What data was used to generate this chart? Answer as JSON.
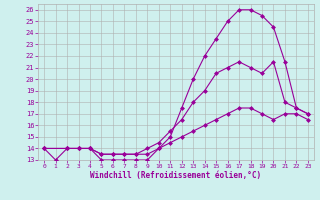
{
  "xlabel": "Windchill (Refroidissement éolien,°C)",
  "bg_color": "#cff0ee",
  "grid_color": "#b0b0b0",
  "line_color": "#990099",
  "xlim": [
    -0.5,
    23.5
  ],
  "ylim": [
    13,
    26.5
  ],
  "xticks": [
    0,
    1,
    2,
    3,
    4,
    5,
    6,
    7,
    8,
    9,
    10,
    11,
    12,
    13,
    14,
    15,
    16,
    17,
    18,
    19,
    20,
    21,
    22,
    23
  ],
  "yticks": [
    13,
    14,
    15,
    16,
    17,
    18,
    19,
    20,
    21,
    22,
    23,
    24,
    25,
    26
  ],
  "curve1_x": [
    0,
    1,
    2,
    3,
    4,
    5,
    6,
    7,
    8,
    9,
    10,
    11,
    12,
    13,
    14,
    15,
    16,
    17,
    18,
    19,
    20,
    21,
    22,
    23
  ],
  "curve1_y": [
    14,
    13,
    14,
    14,
    14,
    13,
    13,
    13,
    13,
    13,
    14,
    15,
    17.5,
    20,
    22,
    23.5,
    25,
    26,
    26,
    25.5,
    24.5,
    21.5,
    17.5,
    17
  ],
  "curve2_x": [
    0,
    2,
    3,
    4,
    5,
    6,
    7,
    8,
    9,
    10,
    11,
    12,
    13,
    14,
    15,
    16,
    17,
    18,
    19,
    20,
    21,
    22,
    23
  ],
  "curve2_y": [
    14,
    14,
    14,
    14,
    13.5,
    13.5,
    13.5,
    13.5,
    14,
    14.5,
    15.5,
    16.5,
    18,
    19,
    20.5,
    21,
    21.5,
    21,
    20.5,
    21.5,
    18,
    17.5,
    17
  ],
  "curve3_x": [
    0,
    2,
    3,
    4,
    5,
    6,
    7,
    8,
    9,
    10,
    11,
    12,
    13,
    14,
    15,
    16,
    17,
    18,
    19,
    20,
    21,
    22,
    23
  ],
  "curve3_y": [
    14,
    14,
    14,
    14,
    13.5,
    13.5,
    13.5,
    13.5,
    13.5,
    14,
    14.5,
    15,
    15.5,
    16,
    16.5,
    17,
    17.5,
    17.5,
    17,
    16.5,
    17,
    17,
    16.5
  ],
  "marker": "D",
  "markersize": 2.5,
  "linewidth": 0.8
}
